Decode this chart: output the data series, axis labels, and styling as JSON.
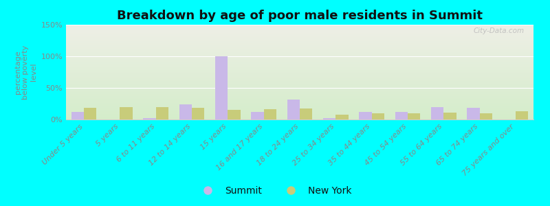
{
  "title": "Breakdown by age of poor male residents in Summit",
  "ylabel": "percentage\nbelow poverty\nlevel",
  "categories": [
    "Under 5 years",
    "5 years",
    "6 to 11 years",
    "12 to 14 years",
    "15 years",
    "16 and 17 years",
    "18 to 24 years",
    "25 to 34 years",
    "35 to 44 years",
    "45 to 54 years",
    "55 to 64 years",
    "65 to 74 years",
    "75 years and over"
  ],
  "summit_values": [
    12,
    0,
    2,
    24,
    100,
    12,
    32,
    2,
    12,
    12,
    20,
    19,
    0
  ],
  "newyork_values": [
    19,
    20,
    20,
    19,
    15,
    16,
    17,
    8,
    10,
    10,
    11,
    10,
    13
  ],
  "summit_color": "#c9b8e8",
  "newyork_color": "#c8cc7a",
  "background_color": "#00ffff",
  "plot_bg_top": "#eeeee6",
  "plot_bg_bottom": "#d4edca",
  "ylim": [
    0,
    150
  ],
  "yticks": [
    0,
    50,
    100,
    150
  ],
  "ytick_labels": [
    "0%",
    "50%",
    "100%",
    "150%"
  ],
  "bar_width": 0.35,
  "legend_labels": [
    "Summit",
    "New York"
  ],
  "watermark": "City-Data.com",
  "title_fontsize": 13,
  "tick_fontsize": 8,
  "ylabel_fontsize": 8
}
